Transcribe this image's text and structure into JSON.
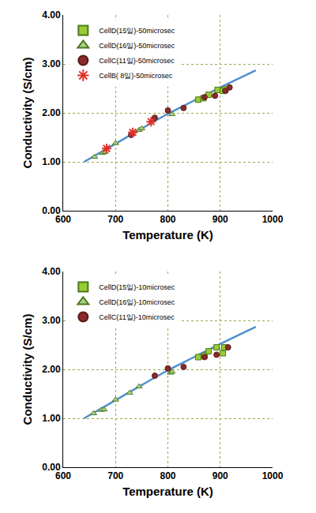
{
  "chart_data": [
    {
      "type": "scatter",
      "x_label": "Temperature (K)",
      "y_label": "Conductivity (S/cm)",
      "xlim": [
        600,
        1000
      ],
      "xticks": [
        600,
        700,
        800,
        900,
        1000
      ],
      "ylim": [
        0,
        4
      ],
      "yticks": [
        {
          "value": 0,
          "label": "0.00"
        },
        {
          "value": 1,
          "label": "1.00"
        },
        {
          "value": 2,
          "label": "2.00"
        },
        {
          "value": 3,
          "label": "3.00"
        },
        {
          "value": 4,
          "label": "4.00"
        }
      ],
      "grid": true,
      "legend": "upper left",
      "series": [
        {
          "name": "CellD(15일)-50microsec",
          "color": "#99cc33",
          "marker": "square",
          "x": [
            858,
            868,
            878,
            895,
            905,
            910
          ],
          "values": [
            2.27,
            2.3,
            2.37,
            2.47,
            2.45,
            2.48
          ]
        },
        {
          "name": "CellD(16일)-50microsec",
          "color": "#a9d18e",
          "marker": "triangle",
          "x": [
            660,
            675,
            680,
            700,
            745,
            750,
            808
          ],
          "values": [
            1.1,
            1.18,
            1.2,
            1.38,
            1.65,
            1.68,
            1.97
          ]
        },
        {
          "name": "CellC(11일)-50microsec",
          "color": "#8b2a2a",
          "marker": "circle",
          "x": [
            730,
            775,
            800,
            830,
            870,
            890,
            910,
            918
          ],
          "values": [
            1.55,
            1.9,
            2.05,
            2.1,
            2.32,
            2.35,
            2.45,
            2.52
          ]
        },
        {
          "name": "CellB( 8일)-50microsec",
          "color": "#e0302a",
          "marker": "asterisk",
          "x": [
            683,
            733,
            768
          ],
          "values": [
            1.27,
            1.6,
            1.82
          ]
        },
        {
          "type": "line",
          "color": "#4f8fcc",
          "line_style": "solid",
          "x": [
            640,
            700,
            750,
            800,
            850,
            900,
            968
          ],
          "values": [
            1.0,
            1.37,
            1.68,
            1.98,
            2.25,
            2.52,
            2.87
          ]
        }
      ]
    },
    {
      "type": "scatter",
      "x_label": "Temperature (K)",
      "y_label": "Conductivity (S/cm)",
      "xlim": [
        600,
        1000
      ],
      "xticks": [
        600,
        700,
        800,
        900,
        1000
      ],
      "ylim": [
        0,
        4
      ],
      "yticks": [
        {
          "value": 0,
          "label": "0.00"
        },
        {
          "value": 1,
          "label": "1.00"
        },
        {
          "value": 2,
          "label": "2.00"
        },
        {
          "value": 3,
          "label": "3.00"
        },
        {
          "value": 4,
          "label": "4.00"
        }
      ],
      "grid": true,
      "legend": "upper left",
      "series": [
        {
          "name": "CellD(15일)-10microsec",
          "color": "#99cc33",
          "marker": "square",
          "x": [
            858,
            870,
            878,
            893,
            905,
            908
          ],
          "values": [
            2.25,
            2.28,
            2.37,
            2.45,
            2.33,
            2.45
          ]
        },
        {
          "name": "CellD(16일)-10microsec",
          "color": "#a9d18e",
          "marker": "triangle",
          "x": [
            658,
            673,
            678,
            700,
            727,
            745,
            805,
            808
          ],
          "values": [
            1.1,
            1.17,
            1.18,
            1.38,
            1.52,
            1.65,
            1.93,
            1.95
          ]
        },
        {
          "name": "CellC(11일)-10microsec",
          "color": "#8b2a2a",
          "marker": "circle",
          "x": [
            775,
            800,
            830,
            870,
            893,
            915
          ],
          "values": [
            1.87,
            2.02,
            2.05,
            2.25,
            2.3,
            2.45
          ]
        },
        {
          "type": "line",
          "color": "#4f8fcc",
          "line_style": "solid",
          "x": [
            640,
            700,
            750,
            800,
            850,
            900,
            968
          ],
          "values": [
            1.0,
            1.37,
            1.68,
            1.98,
            2.25,
            2.52,
            2.87
          ]
        }
      ]
    }
  ]
}
